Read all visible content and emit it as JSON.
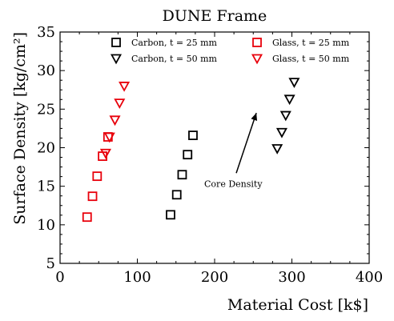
{
  "chart_data": {
    "type": "scatter",
    "title": "DUNE Frame",
    "xlabel": "Material Cost [k$]",
    "ylabel": "Surface Density [kg/cm²]",
    "xlim": [
      0,
      400
    ],
    "ylim": [
      5,
      35
    ],
    "xticks": [
      0,
      100,
      200,
      300,
      400
    ],
    "yticks": [
      5,
      10,
      15,
      20,
      25,
      30,
      35
    ],
    "grid": false,
    "legend_position": "top",
    "series": [
      {
        "name": "Carbon, t = 25 mm",
        "marker": "square",
        "color": "#000000",
        "points": [
          [
            143,
            11.3
          ],
          [
            151,
            13.9
          ],
          [
            158,
            16.5
          ],
          [
            165,
            19.1
          ],
          [
            172,
            21.6
          ]
        ]
      },
      {
        "name": "Carbon, t = 50 mm",
        "marker": "triangle-down",
        "color": "#000000",
        "points": [
          [
            281,
            19.9
          ],
          [
            287,
            22.0
          ],
          [
            292,
            24.2
          ],
          [
            297,
            26.3
          ],
          [
            303,
            28.5
          ]
        ]
      },
      {
        "name": "Glass, t = 25 mm",
        "marker": "square",
        "color": "#e8000b",
        "points": [
          [
            35,
            11.0
          ],
          [
            42,
            13.7
          ],
          [
            48,
            16.3
          ],
          [
            55,
            18.9
          ],
          [
            62,
            21.4
          ]
        ]
      },
      {
        "name": "Glass, t = 50 mm",
        "marker": "triangle-down",
        "color": "#e8000b",
        "points": [
          [
            59,
            19.3
          ],
          [
            64,
            21.4
          ],
          [
            71,
            23.6
          ],
          [
            77,
            25.8
          ],
          [
            83,
            28.0
          ]
        ]
      }
    ],
    "annotations": [
      {
        "text": "Core Density",
        "arrow_from": [
          228,
          16.7
        ],
        "arrow_to": [
          254,
          24.5
        ]
      }
    ]
  }
}
